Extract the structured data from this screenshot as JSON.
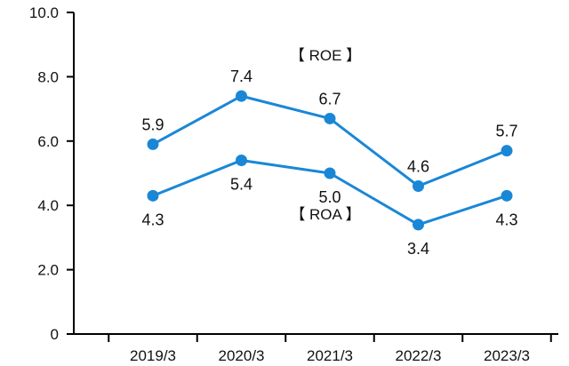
{
  "chart_data": {
    "type": "line",
    "categories": [
      "2019/3",
      "2020/3",
      "2021/3",
      "2022/3",
      "2023/3"
    ],
    "series": [
      {
        "name": "【 ROE 】",
        "values": [
          5.9,
          7.4,
          6.7,
          4.6,
          5.7
        ],
        "labels": [
          "5.9",
          "7.4",
          "6.7",
          "4.6",
          "5.7"
        ],
        "color": "#1a87d6"
      },
      {
        "name": "【 ROA 】",
        "values": [
          4.3,
          5.4,
          5.0,
          3.4,
          4.3
        ],
        "labels": [
          "4.3",
          "5.4",
          "5.0",
          "3.4",
          "4.3"
        ],
        "color": "#1a87d6"
      }
    ],
    "yticks": [
      "0",
      "2.0",
      "4.0",
      "6.0",
      "8.0",
      "10.0"
    ],
    "ylim": [
      0,
      10
    ],
    "grid": false,
    "title": "",
    "xlabel": "",
    "ylabel": ""
  }
}
